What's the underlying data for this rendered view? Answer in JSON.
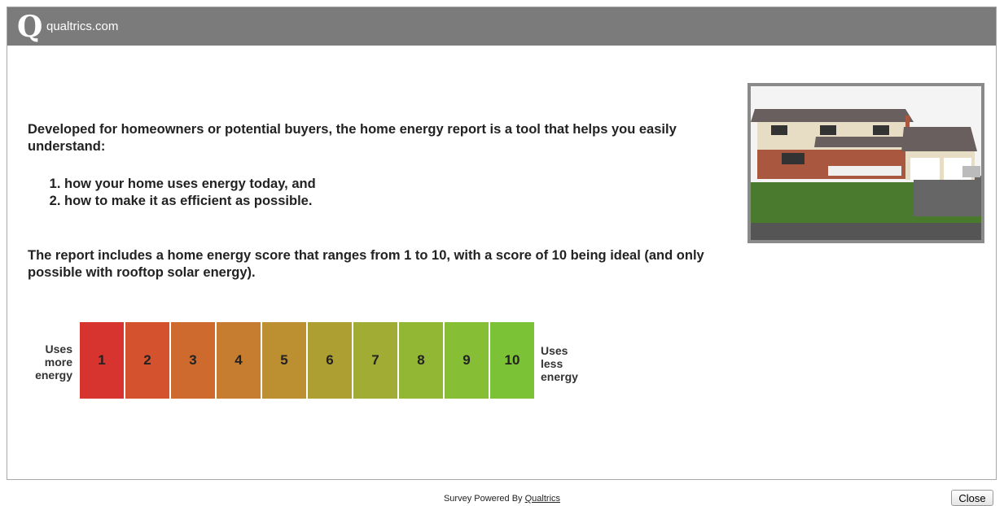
{
  "header": {
    "logo": "qualtrics.com"
  },
  "content": {
    "intro": "Developed for homeowners or potential buyers, the home energy report is a tool that helps you easily understand:",
    "list": [
      "how your home uses energy today, and",
      "how to make it as efficient as possible."
    ],
    "score_text": "The report includes a home energy score that ranges from 1 to 10, with a score of 10 being ideal (and only possible with rooftop solar energy).",
    "scale": {
      "left_label": "Uses more energy",
      "right_label": "Uses less energy",
      "steps": [
        1,
        2,
        3,
        4,
        5,
        6,
        7,
        8,
        9,
        10
      ],
      "colors": [
        "#d8342f",
        "#d5522e",
        "#cf6a2f",
        "#c77d2f",
        "#bc8f31",
        "#ae9f32",
        "#a0ac33",
        "#92b734",
        "#86be35",
        "#7cc236"
      ]
    }
  },
  "footer": {
    "powered_by": "Survey Powered By",
    "link": "Qualtrics",
    "close_button": "Close"
  }
}
